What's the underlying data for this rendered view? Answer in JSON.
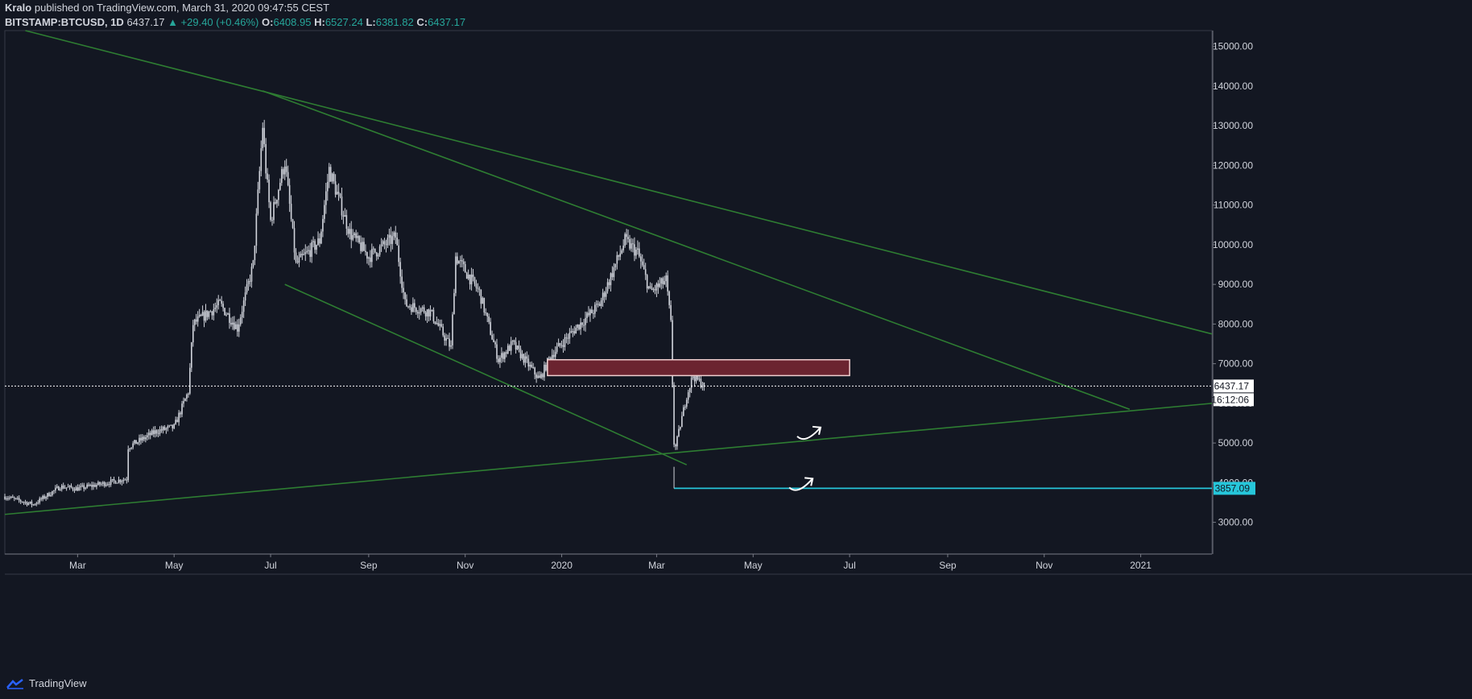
{
  "header": {
    "author": "Kralo",
    "published_text": "published on TradingView.com, March 31, 2020 09:47:55 CEST",
    "symbol": "BITSTAMP:BTCUSD, 1D",
    "last": "6437.17",
    "change": "▲ +29.40 (+0.46%)",
    "o_label": "O:",
    "o_value": "6408.95",
    "h_label": "H:",
    "h_value": "6527.24",
    "l_label": "L:",
    "l_value": "6381.82",
    "c_label": "C:",
    "c_value": "6437.17"
  },
  "footer": {
    "brand": "TradingView"
  },
  "colors": {
    "background": "#131722",
    "candle": "#d1d4dc",
    "trendline": "#2e7d32",
    "support": "#26c6da",
    "zone_fill": "#6b2430",
    "zone_stroke": "#f0d0d0",
    "price_line": "#ffffff",
    "axis_text": "#d1d4dc"
  },
  "chart_data": {
    "type": "candlestick",
    "ylim": [
      2200,
      15400
    ],
    "x_range": [
      "2019-01-14",
      "2021-02-15"
    ],
    "y_ticks": [
      3000,
      4000,
      5000,
      6000,
      7000,
      8000,
      9000,
      10000,
      11000,
      12000,
      13000,
      14000,
      15000
    ],
    "y_tick_labels": [
      "3000.00",
      "4000.00",
      "5000.00",
      "6000.00",
      "7000.00",
      "8000.00",
      "9000.00",
      "10000.00",
      "11000.00",
      "12000.00",
      "13000.00",
      "14000.00",
      "15000.00"
    ],
    "x_ticks": [
      {
        "date": "2019-03-01",
        "label": "Mar"
      },
      {
        "date": "2019-05-01",
        "label": "May"
      },
      {
        "date": "2019-07-01",
        "label": "Jul"
      },
      {
        "date": "2019-09-01",
        "label": "Sep"
      },
      {
        "date": "2019-11-01",
        "label": "Nov"
      },
      {
        "date": "2020-01-01",
        "label": "2020"
      },
      {
        "date": "2020-03-01",
        "label": "Mar"
      },
      {
        "date": "2020-05-01",
        "label": "May"
      },
      {
        "date": "2020-07-01",
        "label": "Jul"
      },
      {
        "date": "2020-09-01",
        "label": "Sep"
      },
      {
        "date": "2020-11-01",
        "label": "Nov"
      },
      {
        "date": "2021-01-01",
        "label": "2021"
      }
    ],
    "price_path": [
      [
        "2019-01-14",
        3650
      ],
      [
        "2019-02-01",
        3450
      ],
      [
        "2019-02-18",
        3900
      ],
      [
        "2019-03-01",
        3850
      ],
      [
        "2019-03-20",
        4000
      ],
      [
        "2019-04-01",
        4100
      ],
      [
        "2019-04-02",
        4900
      ],
      [
        "2019-04-20",
        5300
      ],
      [
        "2019-05-01",
        5400
      ],
      [
        "2019-05-10",
        6300
      ],
      [
        "2019-05-13",
        8000
      ],
      [
        "2019-05-30",
        8500
      ],
      [
        "2019-06-10",
        7900
      ],
      [
        "2019-06-20",
        9500
      ],
      [
        "2019-06-26",
        13000
      ],
      [
        "2019-06-28",
        11900
      ],
      [
        "2019-07-01",
        10600
      ],
      [
        "2019-07-10",
        12100
      ],
      [
        "2019-07-17",
        9500
      ],
      [
        "2019-08-01",
        10100
      ],
      [
        "2019-08-07",
        11900
      ],
      [
        "2019-08-20",
        10300
      ],
      [
        "2019-09-01",
        9700
      ],
      [
        "2019-09-18",
        10200
      ],
      [
        "2019-09-24",
        8500
      ],
      [
        "2019-10-10",
        8300
      ],
      [
        "2019-10-23",
        7400
      ],
      [
        "2019-10-26",
        9700
      ],
      [
        "2019-11-10",
        8800
      ],
      [
        "2019-11-22",
        7100
      ],
      [
        "2019-12-01",
        7500
      ],
      [
        "2019-12-18",
        6600
      ],
      [
        "2019-12-25",
        7200
      ],
      [
        "2020-01-10",
        7900
      ],
      [
        "2020-01-25",
        8500
      ],
      [
        "2020-02-10",
        10100
      ],
      [
        "2020-02-18",
        9800
      ],
      [
        "2020-02-26",
        8800
      ],
      [
        "2020-03-07",
        9100
      ],
      [
        "2020-03-10",
        8000
      ],
      [
        "2020-03-12",
        5000
      ],
      [
        "2020-03-13",
        4900
      ],
      [
        "2020-03-20",
        6200
      ],
      [
        "2020-03-24",
        6700
      ],
      [
        "2020-03-31",
        6437
      ]
    ],
    "drawings": {
      "trendlines": [
        {
          "p1": [
            "2019-01-27",
            15400
          ],
          "p2": [
            "2021-02-15",
            7750
          ]
        },
        {
          "p1": [
            "2019-06-26",
            13880
          ],
          "p2": [
            "2020-12-25",
            5850
          ]
        },
        {
          "p1": [
            "2019-07-10",
            9000
          ],
          "p2": [
            "2020-03-20",
            4450
          ]
        },
        {
          "p1": [
            "2019-01-14",
            3200
          ],
          "p2": [
            "2021-02-15",
            6000
          ]
        }
      ],
      "zone": {
        "from": "2019-12-23",
        "to": "2020-07-01",
        "top": 7100,
        "bottom": 6700
      },
      "support": {
        "from": "2020-03-12",
        "value": 3857.09
      },
      "current_price": 6437.17,
      "arrows": [
        {
          "date": "2020-06-05",
          "value": 5250
        },
        {
          "date": "2020-05-31",
          "value": 3960
        }
      ]
    },
    "price_label": "6437.17",
    "countdown_label": "16:12:06",
    "support_label": "3857.09"
  }
}
